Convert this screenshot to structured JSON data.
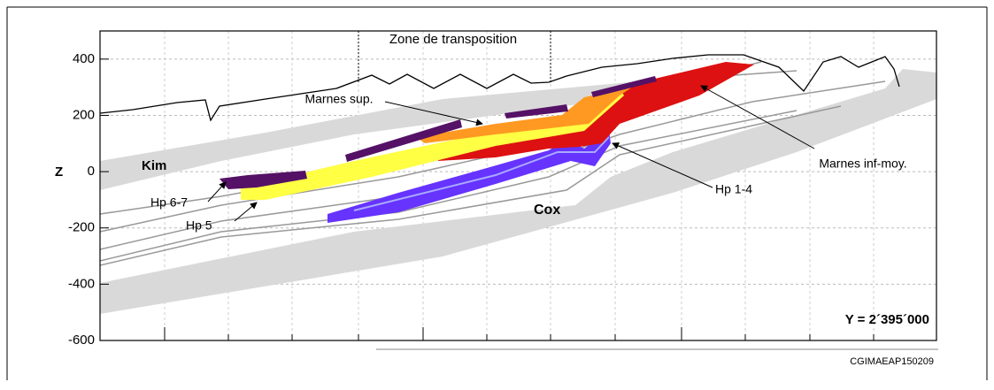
{
  "axis": {
    "label": "Z",
    "lim": [
      -600,
      500
    ],
    "ticks": [
      400,
      200,
      0,
      -200,
      -400,
      -600
    ]
  },
  "labels": {
    "zone": "Zone de transposition",
    "marnes_sup": "Marnes sup.",
    "marnes_inf": "Marnes inf-moy.",
    "kim": "Kim",
    "cox": "Cox",
    "hp67": "Hp 6-7",
    "hp5": "Hp 5",
    "hp14": "Hp 1-4",
    "section": "Y = 2´395´000"
  },
  "code": "CGIMAEAP150209"
}
